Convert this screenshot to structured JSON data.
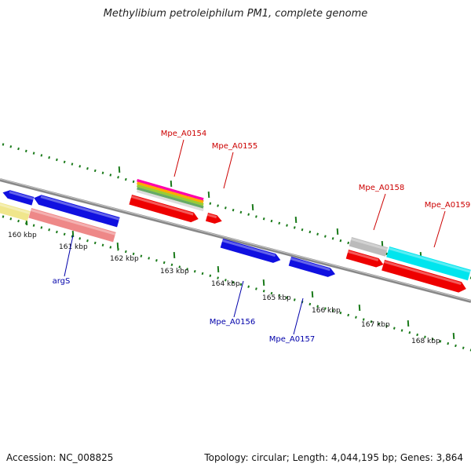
{
  "title": "Methylibium petroleiphilum PM1, complete genome",
  "footer": {
    "accession": "Accession: NC_008825",
    "summary": "Topology: circular; Length: 4,044,195 bp; Genes: 3,864"
  },
  "colors": {
    "backbone": "#888888",
    "forward_label": "#cc0000",
    "reverse_label": "#0000aa",
    "tick": "#1a7a1a",
    "blue": "#1010e0",
    "red": "#ee0000",
    "pink": "#ee8888",
    "yellow": "#f0e68c",
    "cyan": "#00e5ee",
    "gray": "#bbbbbb"
  },
  "scale": {
    "unit": "kbp",
    "ticks": [
      "160 kbp",
      "161 kbp",
      "162 kbp",
      "163 kbp",
      "164 kbp",
      "165 kbp",
      "166 kbp",
      "167 kbp",
      "168 kbp"
    ]
  },
  "genes": {
    "forward": [
      "Mpe_A0154",
      "Mpe_A0155",
      "Mpe_A0158",
      "Mpe_A0159"
    ],
    "reverse": [
      "argS",
      "Mpe_A0156",
      "Mpe_A0157"
    ]
  }
}
